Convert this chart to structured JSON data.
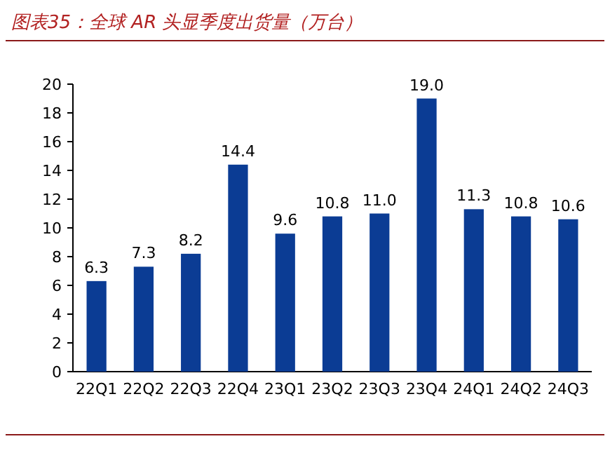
{
  "chart_data": {
    "type": "bar",
    "title": "图表35：全球 AR 头显季度出货量（万台）",
    "categories": [
      "22Q1",
      "22Q2",
      "22Q3",
      "22Q4",
      "23Q1",
      "23Q2",
      "23Q3",
      "23Q4",
      "24Q1",
      "24Q2",
      "24Q3"
    ],
    "values": [
      6.3,
      7.3,
      8.2,
      14.4,
      9.6,
      10.8,
      11.0,
      19.0,
      11.3,
      10.8,
      10.6
    ],
    "value_labels": [
      "6.3",
      "7.3",
      "8.2",
      "14.4",
      "9.6",
      "10.8",
      "11.0",
      "19.0",
      "11.3",
      "10.8",
      "10.6"
    ],
    "color": "#0b3c94",
    "ylim": [
      0,
      20
    ],
    "yticks": [
      0,
      2,
      4,
      6,
      8,
      10,
      12,
      14,
      16,
      18,
      20
    ]
  }
}
